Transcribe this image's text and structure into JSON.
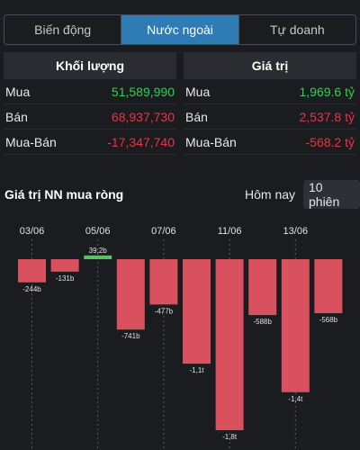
{
  "tabs": [
    {
      "label": "Biến động",
      "active": false
    },
    {
      "label": "Nước ngoài",
      "active": true
    },
    {
      "label": "Tự doanh",
      "active": false
    }
  ],
  "volume": {
    "header": "Khối lượng",
    "rows": [
      {
        "label": "Mua",
        "value": "51,589,990"
      },
      {
        "label": "Bán",
        "value": "68,937,730"
      },
      {
        "label": "Mua-Bán",
        "value": "-17,347,740"
      }
    ]
  },
  "value": {
    "header": "Giá trị",
    "rows": [
      {
        "label": "Mua",
        "value": "1,969.6 tỷ"
      },
      {
        "label": "Bán",
        "value": "2,537.8 tỷ"
      },
      {
        "label": "Mua-Bán",
        "value": "-568.2 tỷ"
      }
    ]
  },
  "net_section": {
    "title": "Giá trị NN mua ròng",
    "period_today": "Hôm nay",
    "period_sessions": "10 phiên"
  },
  "colors": {
    "positive": "#5fbf5f",
    "negative": "#d9505e",
    "accent": "#2f7bb5"
  },
  "chart_data": {
    "type": "bar",
    "x_tick_labels": [
      "03/06",
      "05/06",
      "07/06",
      "11/06",
      "13/06"
    ],
    "values": [
      -244,
      -131,
      39.2,
      -741,
      -477,
      -1100,
      -1800,
      -588,
      -1400,
      -568
    ],
    "data_labels": [
      "-244b",
      "-131b",
      "39,2b",
      "-741b",
      "-477b",
      "-1,1t",
      "-1,8t",
      "-588b",
      "-1,4t",
      "-568b"
    ],
    "ylim": [
      -1800,
      39.2
    ]
  }
}
